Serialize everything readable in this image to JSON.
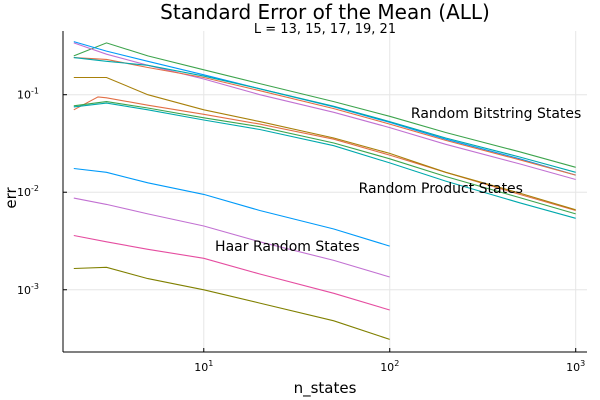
{
  "chart_data": {
    "type": "line",
    "title": "Standard Error of the Mean (ALL)",
    "subtitle": "L = 13, 15, 17, 19, 21",
    "xlabel": "n_states",
    "ylabel": "err",
    "xscale": "log",
    "yscale": "log",
    "xlim": [
      1.75,
      1150
    ],
    "ylim": [
      0.00023,
      0.45
    ],
    "grid": true,
    "legend": "none",
    "x_ticks": [
      {
        "value": 10,
        "base": "10",
        "exp": "1"
      },
      {
        "value": 100,
        "base": "10",
        "exp": "2"
      },
      {
        "value": 1000,
        "base": "10",
        "exp": "3"
      }
    ],
    "y_ticks": [
      {
        "value": 0.001,
        "base": "10",
        "exp": "-3"
      },
      {
        "value": 0.01,
        "base": "10",
        "exp": "-2"
      },
      {
        "value": 0.1,
        "base": "10",
        "exp": "-1"
      }
    ],
    "annotations": [
      {
        "text": "Random Bitstring States",
        "x": 130,
        "y": 0.065
      },
      {
        "text": "Random Product States",
        "x": 68,
        "y": 0.011
      },
      {
        "text": "Haar Random States",
        "x": 11.5,
        "y": 0.0028
      }
    ],
    "series": [
      {
        "color": "#009af9",
        "group": "Haar Random States",
        "x": [
          2,
          3,
          5,
          10,
          20,
          50,
          100
        ],
        "y": [
          0.0175,
          0.016,
          0.0125,
          0.0095,
          0.0065,
          0.0042,
          0.0028
        ]
      },
      {
        "color": "#c271d2",
        "group": "Haar Random States",
        "x": [
          2,
          3,
          5,
          10,
          20,
          50,
          100
        ],
        "y": [
          0.0087,
          0.0075,
          0.006,
          0.0045,
          0.0031,
          0.002,
          0.00135
        ]
      },
      {
        "color": "#e54da0",
        "group": "Haar Random States",
        "x": [
          2,
          3,
          5,
          10,
          20,
          50,
          100
        ],
        "y": [
          0.0036,
          0.0031,
          0.0026,
          0.0021,
          0.00145,
          0.00092,
          0.00062
        ]
      },
      {
        "color": "#808000",
        "group": "Haar Random States",
        "x": [
          2,
          3,
          5,
          10,
          20,
          50,
          100
        ],
        "y": [
          0.00165,
          0.0017,
          0.0013,
          0.001,
          0.00073,
          0.00048,
          0.00031
        ]
      },
      {
        "color": "#e26f46",
        "group": "Random Product States",
        "x": [
          2,
          2.7,
          3,
          5,
          10,
          20,
          50,
          100,
          200,
          500,
          1000
        ],
        "y": [
          0.07,
          0.095,
          0.093,
          0.078,
          0.063,
          0.05,
          0.035,
          0.024,
          0.016,
          0.0095,
          0.0065
        ]
      },
      {
        "color": "#3da44d",
        "group": "Random Product States",
        "x": [
          2,
          3,
          5,
          10,
          20,
          50,
          100,
          200,
          500,
          1000
        ],
        "y": [
          0.077,
          0.085,
          0.073,
          0.058,
          0.047,
          0.032,
          0.022,
          0.0145,
          0.0088,
          0.006
        ]
      },
      {
        "color": "#00a9ad",
        "group": "Random Product States",
        "x": [
          2,
          3,
          5,
          10,
          20,
          50,
          100,
          200,
          500,
          1000
        ],
        "y": [
          0.075,
          0.082,
          0.07,
          0.055,
          0.044,
          0.03,
          0.02,
          0.013,
          0.0078,
          0.0054
        ]
      },
      {
        "color": "#a8800a",
        "group": "Random Product States",
        "x": [
          2,
          3,
          5,
          10,
          20,
          50,
          100,
          200,
          500,
          1000
        ],
        "y": [
          0.15,
          0.15,
          0.1,
          0.07,
          0.053,
          0.036,
          0.025,
          0.016,
          0.0098,
          0.0066
        ]
      },
      {
        "color": "#3da44d",
        "group": "Random Bitstring States",
        "x": [
          2,
          3,
          5,
          10,
          20,
          50,
          100,
          200,
          500,
          1000
        ],
        "y": [
          0.25,
          0.34,
          0.25,
          0.18,
          0.13,
          0.085,
          0.06,
          0.041,
          0.026,
          0.018
        ]
      },
      {
        "color": "#009af9",
        "group": "Random Bitstring States",
        "x": [
          2,
          3,
          5,
          10,
          20,
          50,
          100,
          200,
          500,
          1000
        ],
        "y": [
          0.35,
          0.28,
          0.22,
          0.16,
          0.115,
          0.075,
          0.052,
          0.035,
          0.022,
          0.015
        ]
      },
      {
        "color": "#c271d2",
        "group": "Random Bitstring States",
        "x": [
          2,
          3,
          5,
          10,
          20,
          50,
          100,
          200,
          500,
          1000
        ],
        "y": [
          0.34,
          0.26,
          0.2,
          0.145,
          0.1,
          0.066,
          0.046,
          0.031,
          0.0195,
          0.0135
        ]
      },
      {
        "color": "#e26f46",
        "group": "Random Bitstring States",
        "x": [
          2,
          3,
          5,
          10,
          20,
          50,
          100,
          200,
          500,
          1000
        ],
        "y": [
          0.24,
          0.23,
          0.19,
          0.15,
          0.11,
          0.072,
          0.05,
          0.034,
          0.0215,
          0.015
        ]
      },
      {
        "color": "#00a9ad",
        "group": "Random Bitstring States",
        "x": [
          2,
          3,
          5,
          10,
          20,
          50,
          100,
          200,
          500,
          1000
        ],
        "y": [
          0.24,
          0.22,
          0.2,
          0.155,
          0.115,
          0.076,
          0.053,
          0.036,
          0.023,
          0.016
        ]
      }
    ]
  }
}
